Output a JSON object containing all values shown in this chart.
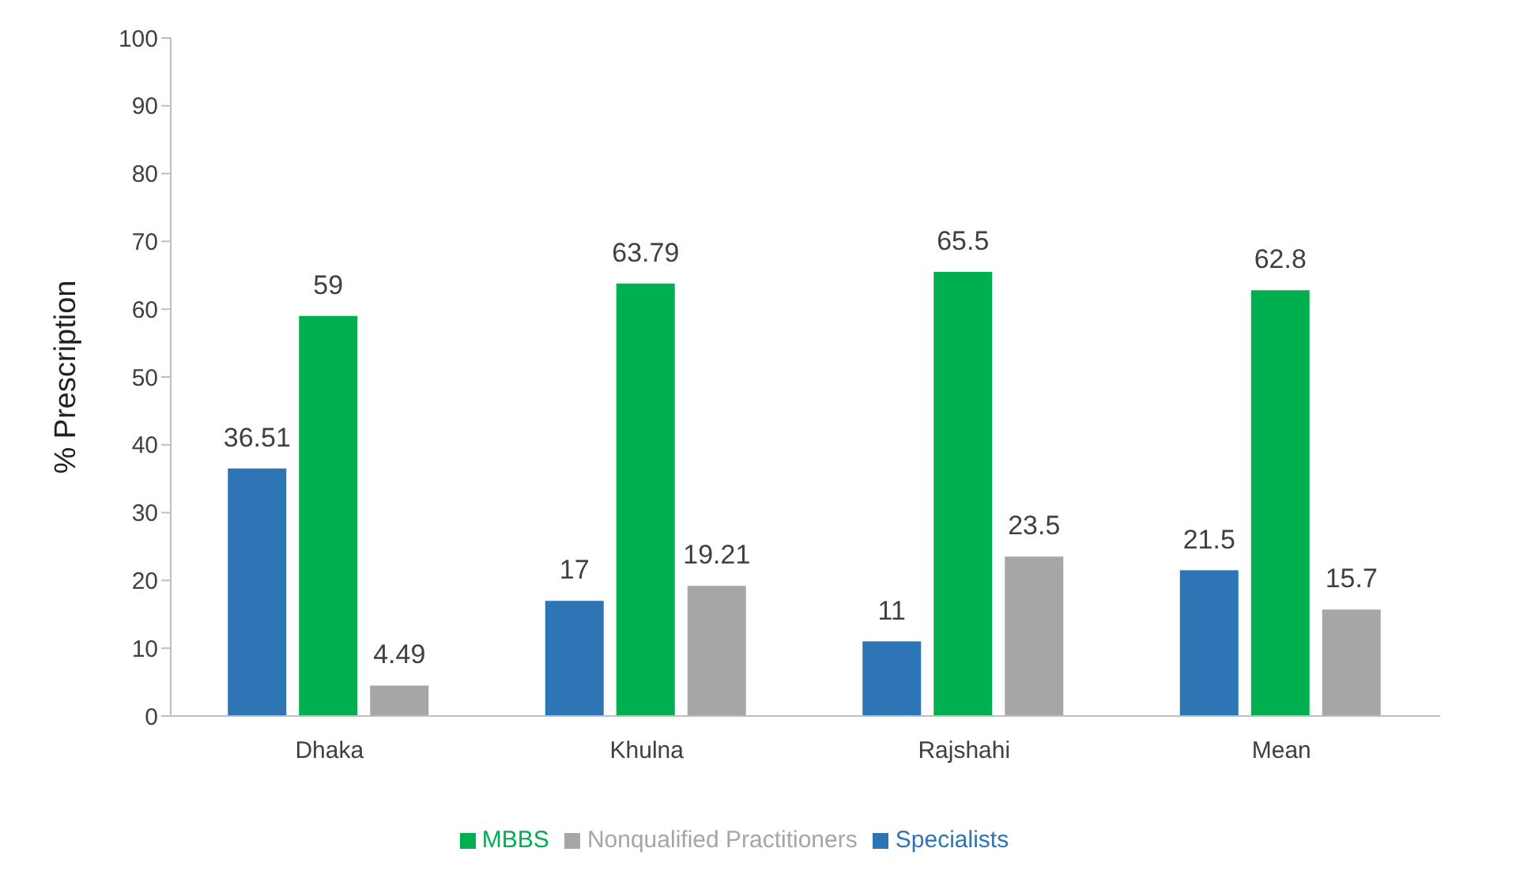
{
  "chart_data": {
    "type": "bar",
    "ylabel": "% Prescription",
    "categories": [
      "Dhaka",
      "Khulna",
      "Rajshahi",
      "Mean"
    ],
    "series": [
      {
        "name": "Specialists",
        "color": "#2e75b6",
        "values": [
          36.51,
          17,
          11,
          21.5
        ]
      },
      {
        "name": "MBBS",
        "color": "#00b050",
        "values": [
          59,
          63.79,
          65.5,
          62.8
        ]
      },
      {
        "name": "Nonqualified Practitioners",
        "color": "#a6a6a6",
        "values": [
          4.49,
          19.21,
          23.5,
          15.7
        ]
      }
    ],
    "ylim": [
      0,
      100
    ],
    "yticks": [
      0,
      10,
      20,
      30,
      40,
      50,
      60,
      70,
      80,
      90,
      100
    ],
    "grid": false,
    "legend": "bottom",
    "data_labels": true
  }
}
